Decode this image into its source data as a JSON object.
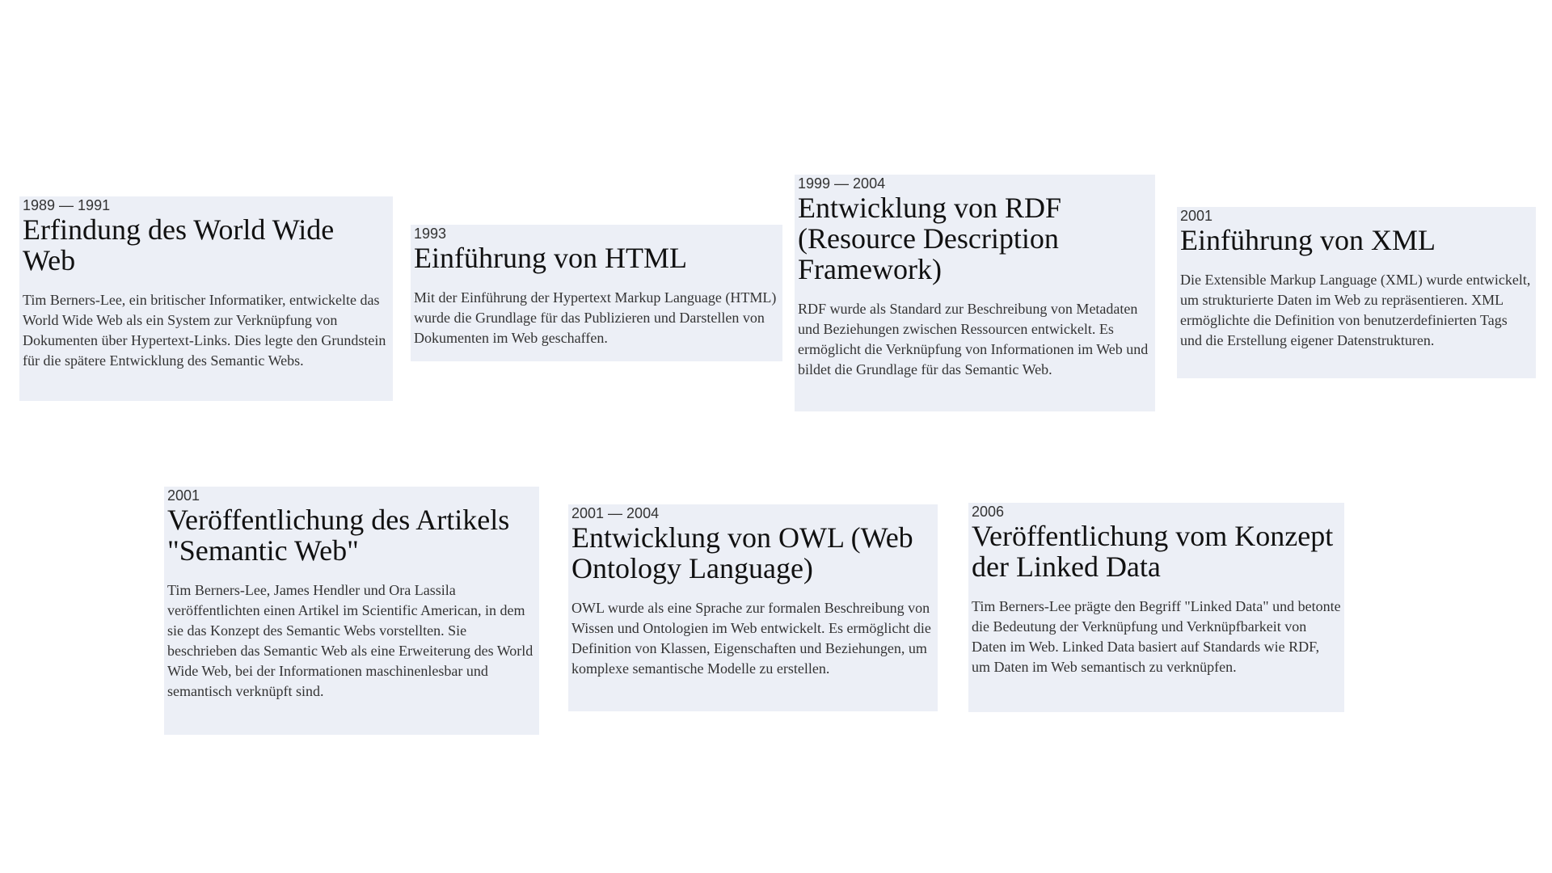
{
  "timeline": {
    "events": [
      {
        "date": "1989 — 1991",
        "title": "Erfindung des World Wide Web",
        "description": "Tim Berners-Lee, ein britischer Informatiker, entwickelte das World Wide Web als ein System zur Verknüpfung von Dokumenten über Hypertext-Links. Dies legte den Grundstein für die spätere Entwicklung des Semantic Webs."
      },
      {
        "date": "1993",
        "title": "Einführung von HTML",
        "description": "Mit der Einführung der Hypertext Markup Language (HTML) wurde die Grundlage für das Publizieren und Darstellen von Dokumenten im Web geschaffen."
      },
      {
        "date": "1999 — 2004",
        "title": "Entwicklung von RDF (Resource Description Framework)",
        "description": "RDF wurde als Standard zur Beschreibung von Metadaten und Beziehungen zwischen Ressourcen entwickelt. Es ermöglicht die Verknüpfung von Informationen im Web und bildet die Grundlage für das Semantic Web."
      },
      {
        "date": "2001",
        "title": "Einführung von XML",
        "description": "Die Extensible Markup Language (XML) wurde entwickelt, um strukturierte Daten im Web zu repräsentieren. XML ermöglichte die Definition von benutzerdefinierten Tags und die Erstellung eigener Datenstrukturen."
      },
      {
        "date": "2001",
        "title": "Veröffentlichung des Artikels \"Semantic Web\"",
        "description": "Tim Berners-Lee, James Hendler und Ora Lassila veröffentlichten einen Artikel im Scientific American, in dem sie das Konzept des Semantic Webs vorstellten. Sie beschrieben das Semantic Web als eine Erweiterung des World Wide Web, bei der Informationen maschinenlesbar und semantisch verknüpft sind."
      },
      {
        "date": "2001 — 2004",
        "title": "Entwicklung von OWL (Web Ontology Language)",
        "description": "OWL wurde als eine Sprache zur formalen Beschreibung von Wissen und Ontologien im Web entwickelt. Es ermöglicht die Definition von Klassen, Eigenschaften und Beziehungen, um komplexe semantische Modelle zu erstellen."
      },
      {
        "date": "2006",
        "title": "Veröffentlichung vom Konzept der Linked Data",
        "description": "Tim Berners-Lee prägte den Begriff \"Linked Data\" und betonte die Bedeutung der Verknüpfung und Verknüpfbarkeit von Daten im Web. Linked Data basiert auf Standards wie RDF, um Daten im Web semantisch zu verknüpfen."
      }
    ]
  },
  "colors": {
    "card_background": "#eceff6",
    "text": "#333333",
    "title": "#111111"
  }
}
